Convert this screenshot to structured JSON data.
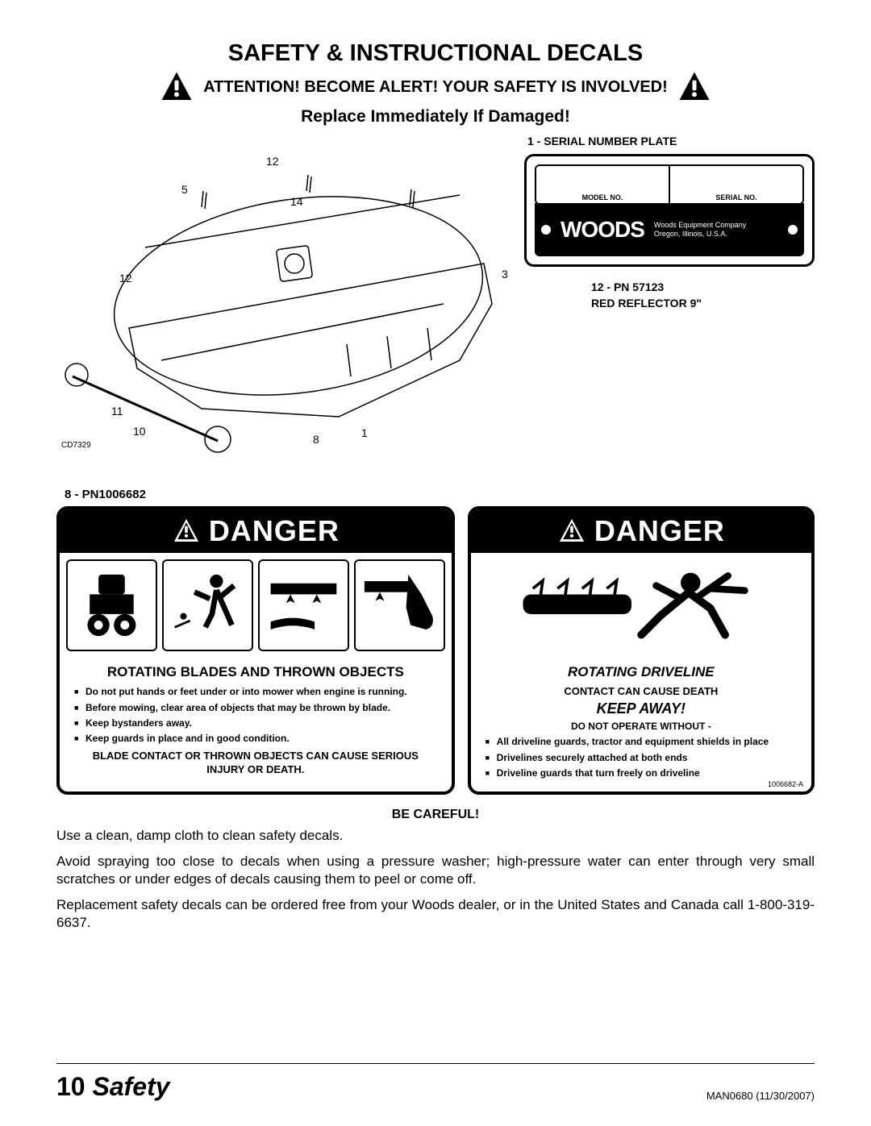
{
  "header": {
    "title": "SAFETY & INSTRUCTIONAL DECALS",
    "attention": "ATTENTION! BECOME ALERT! YOUR SAFETY IS INVOLVED!",
    "replace": "Replace Immediately If Damaged!"
  },
  "serial_plate": {
    "label": "1 - SERIAL NUMBER PLATE",
    "model_no": "MODEL NO.",
    "serial_no": "SERIAL NO.",
    "brand": "WOODS",
    "company_line1": "Woods Equipment Company",
    "company_line2": "Oregon, Illinois, U.S.A."
  },
  "pn12": {
    "line1": "12 - PN 57123",
    "line2": "RED REFLECTOR 9\""
  },
  "callouts": {
    "c5": "5",
    "c12a": "12",
    "c12b": "12",
    "c14": "14",
    "c3": "3",
    "c11": "11",
    "c10": "10",
    "c8": "8",
    "c1": "1",
    "cd": "CD7329"
  },
  "pn8": "8 - PN1006682",
  "danger_left": {
    "head": "DANGER",
    "title": "ROTATING BLADES AND THROWN OBJECTS",
    "bullets": [
      "Do not put hands or feet under or into mower when engine is running.",
      "Before mowing, clear area of objects that may be thrown by blade.",
      "Keep bystanders away.",
      "Keep guards in place and in good condition."
    ],
    "warn": "BLADE CONTACT OR THROWN OBJECTS CAN CAUSE SERIOUS INJURY OR DEATH."
  },
  "danger_right": {
    "head": "DANGER",
    "title": "ROTATING DRIVELINE",
    "sub": "CONTACT CAN CAUSE DEATH",
    "keep": "KEEP AWAY!",
    "op": "DO NOT OPERATE WITHOUT -",
    "bullets": [
      "All driveline guards, tractor and equipment shields in place",
      "Drivelines securely attached at both ends",
      "Driveline guards that turn freely on driveline"
    ],
    "num": "1006682-A"
  },
  "careful": {
    "title": "BE CAREFUL!",
    "p1": "Use a clean, damp cloth to clean safety decals.",
    "p2": "Avoid spraying too close to decals when using a pressure washer; high-pressure water can enter through very small scratches or under edges of decals causing them to peel or come off.",
    "p3": "Replacement safety decals can be ordered free from your Woods dealer, or in the United States and Canada call 1-800-319-6637."
  },
  "footer": {
    "page": "10",
    "section": "Safety",
    "doc": "MAN0680 (11/30/2007)"
  }
}
